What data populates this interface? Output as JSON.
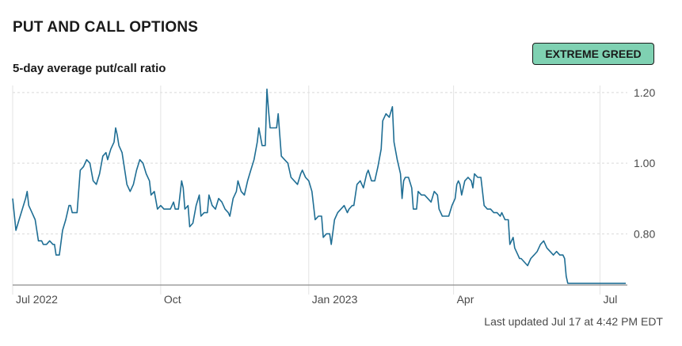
{
  "header": {
    "title": "PUT AND CALL OPTIONS",
    "subtitle": "5-day average put/call ratio",
    "badge": "EXTREME GREED",
    "badge_color": "#7fd1b2",
    "footer": "Last updated Jul 17 at 4:42 PM EDT"
  },
  "chart_data": {
    "type": "line",
    "title": "PUT AND CALL OPTIONS",
    "subtitle": "5-day average put/call ratio",
    "xlabel": "",
    "ylabel": "",
    "ylim": [
      0.655,
      1.22
    ],
    "yticks": [
      0.8,
      1.0,
      1.2
    ],
    "ytick_labels": [
      "0.80",
      "1.00",
      "1.20"
    ],
    "xlim": [
      "2022-07-01",
      "2023-07-18"
    ],
    "xticks": [
      {
        "date": "2022-07-01",
        "label": "Jul 2022"
      },
      {
        "date": "2022-10-01",
        "label": "Oct"
      },
      {
        "date": "2023-01-01",
        "label": "Jan 2023"
      },
      {
        "date": "2023-04-01",
        "label": "Apr"
      },
      {
        "date": "2023-07-01",
        "label": "Jul"
      }
    ],
    "grid": true,
    "line_color": "#1f6e94",
    "series": [
      {
        "values": [
          [
            "2022-07-01",
            0.9
          ],
          [
            "2022-07-03",
            0.81
          ],
          [
            "2022-07-05",
            0.84
          ],
          [
            "2022-07-07",
            0.87
          ],
          [
            "2022-07-09",
            0.9
          ],
          [
            "2022-07-10",
            0.92
          ],
          [
            "2022-07-11",
            0.88
          ],
          [
            "2022-07-13",
            0.86
          ],
          [
            "2022-07-15",
            0.84
          ],
          [
            "2022-07-17",
            0.78
          ],
          [
            "2022-07-19",
            0.78
          ],
          [
            "2022-07-20",
            0.77
          ],
          [
            "2022-07-22",
            0.77
          ],
          [
            "2022-07-24",
            0.78
          ],
          [
            "2022-07-26",
            0.77
          ],
          [
            "2022-07-27",
            0.77
          ],
          [
            "2022-07-28",
            0.74
          ],
          [
            "2022-07-30",
            0.74
          ],
          [
            "2022-08-01",
            0.81
          ],
          [
            "2022-08-03",
            0.84
          ],
          [
            "2022-08-05",
            0.88
          ],
          [
            "2022-08-06",
            0.88
          ],
          [
            "2022-08-07",
            0.86
          ],
          [
            "2022-08-10",
            0.86
          ],
          [
            "2022-08-12",
            0.98
          ],
          [
            "2022-08-14",
            0.99
          ],
          [
            "2022-08-16",
            1.01
          ],
          [
            "2022-08-18",
            1.0
          ],
          [
            "2022-08-20",
            0.95
          ],
          [
            "2022-08-22",
            0.94
          ],
          [
            "2022-08-24",
            0.97
          ],
          [
            "2022-08-26",
            1.02
          ],
          [
            "2022-08-28",
            1.03
          ],
          [
            "2022-08-29",
            1.01
          ],
          [
            "2022-08-31",
            1.04
          ],
          [
            "2022-09-02",
            1.06
          ],
          [
            "2022-09-03",
            1.1
          ],
          [
            "2022-09-04",
            1.08
          ],
          [
            "2022-09-05",
            1.05
          ],
          [
            "2022-09-07",
            1.03
          ],
          [
            "2022-09-09",
            0.97
          ],
          [
            "2022-09-10",
            0.94
          ],
          [
            "2022-09-12",
            0.92
          ],
          [
            "2022-09-14",
            0.94
          ],
          [
            "2022-09-16",
            0.98
          ],
          [
            "2022-09-18",
            1.01
          ],
          [
            "2022-09-20",
            1.0
          ],
          [
            "2022-09-22",
            0.97
          ],
          [
            "2022-09-24",
            0.95
          ],
          [
            "2022-09-25",
            0.91
          ],
          [
            "2022-09-27",
            0.92
          ],
          [
            "2022-09-29",
            0.87
          ],
          [
            "2022-10-01",
            0.88
          ],
          [
            "2022-10-03",
            0.87
          ],
          [
            "2022-10-05",
            0.87
          ],
          [
            "2022-10-07",
            0.87
          ],
          [
            "2022-10-09",
            0.89
          ],
          [
            "2022-10-10",
            0.87
          ],
          [
            "2022-10-12",
            0.87
          ],
          [
            "2022-10-14",
            0.95
          ],
          [
            "2022-10-15",
            0.93
          ],
          [
            "2022-10-16",
            0.87
          ],
          [
            "2022-10-18",
            0.88
          ],
          [
            "2022-10-19",
            0.82
          ],
          [
            "2022-10-21",
            0.83
          ],
          [
            "2022-10-23",
            0.88
          ],
          [
            "2022-10-25",
            0.91
          ],
          [
            "2022-10-26",
            0.85
          ],
          [
            "2022-10-28",
            0.86
          ],
          [
            "2022-10-30",
            0.86
          ],
          [
            "2022-10-31",
            0.91
          ],
          [
            "2022-11-02",
            0.88
          ],
          [
            "2022-11-04",
            0.87
          ],
          [
            "2022-11-06",
            0.9
          ],
          [
            "2022-11-08",
            0.89
          ],
          [
            "2022-11-10",
            0.87
          ],
          [
            "2022-11-12",
            0.86
          ],
          [
            "2022-11-13",
            0.85
          ],
          [
            "2022-11-15",
            0.9
          ],
          [
            "2022-11-17",
            0.92
          ],
          [
            "2022-11-18",
            0.95
          ],
          [
            "2022-11-20",
            0.92
          ],
          [
            "2022-11-22",
            0.91
          ],
          [
            "2022-11-24",
            0.95
          ],
          [
            "2022-11-26",
            0.98
          ],
          [
            "2022-11-28",
            1.01
          ],
          [
            "2022-11-30",
            1.06
          ],
          [
            "2022-12-01",
            1.1
          ],
          [
            "2022-12-03",
            1.05
          ],
          [
            "2022-12-05",
            1.05
          ],
          [
            "2022-12-06",
            1.21
          ],
          [
            "2022-12-07",
            1.15
          ],
          [
            "2022-12-08",
            1.1
          ],
          [
            "2022-12-10",
            1.1
          ],
          [
            "2022-12-12",
            1.1
          ],
          [
            "2022-12-13",
            1.14
          ],
          [
            "2022-12-15",
            1.02
          ],
          [
            "2022-12-17",
            1.01
          ],
          [
            "2022-12-19",
            1.0
          ],
          [
            "2022-12-21",
            0.96
          ],
          [
            "2022-12-23",
            0.95
          ],
          [
            "2022-12-25",
            0.94
          ],
          [
            "2022-12-27",
            0.97
          ],
          [
            "2022-12-28",
            0.98
          ],
          [
            "2022-12-30",
            0.96
          ],
          [
            "2023-01-01",
            0.95
          ],
          [
            "2023-01-03",
            0.92
          ],
          [
            "2023-01-05",
            0.84
          ],
          [
            "2023-01-07",
            0.85
          ],
          [
            "2023-01-09",
            0.85
          ],
          [
            "2023-01-10",
            0.79
          ],
          [
            "2023-01-12",
            0.8
          ],
          [
            "2023-01-14",
            0.8
          ],
          [
            "2023-01-15",
            0.77
          ],
          [
            "2023-01-17",
            0.84
          ],
          [
            "2023-01-19",
            0.86
          ],
          [
            "2023-01-21",
            0.87
          ],
          [
            "2023-01-23",
            0.88
          ],
          [
            "2023-01-25",
            0.86
          ],
          [
            "2023-01-26",
            0.87
          ],
          [
            "2023-01-28",
            0.88
          ],
          [
            "2023-01-29",
            0.88
          ],
          [
            "2023-01-31",
            0.94
          ],
          [
            "2023-02-02",
            0.95
          ],
          [
            "2023-02-04",
            0.93
          ],
          [
            "2023-02-06",
            0.97
          ],
          [
            "2023-02-07",
            0.98
          ],
          [
            "2023-02-09",
            0.95
          ],
          [
            "2023-02-11",
            0.95
          ],
          [
            "2023-02-13",
            0.99
          ],
          [
            "2023-02-15",
            1.04
          ],
          [
            "2023-02-16",
            1.12
          ],
          [
            "2023-02-18",
            1.14
          ],
          [
            "2023-02-20",
            1.13
          ],
          [
            "2023-02-22",
            1.16
          ],
          [
            "2023-02-23",
            1.06
          ],
          [
            "2023-02-25",
            1.01
          ],
          [
            "2023-02-27",
            0.97
          ],
          [
            "2023-02-28",
            0.9
          ],
          [
            "2023-03-01",
            0.95
          ],
          [
            "2023-03-02",
            0.96
          ],
          [
            "2023-03-04",
            0.96
          ],
          [
            "2023-03-06",
            0.93
          ],
          [
            "2023-03-07",
            0.87
          ],
          [
            "2023-03-09",
            0.87
          ],
          [
            "2023-03-10",
            0.92
          ],
          [
            "2023-03-12",
            0.91
          ],
          [
            "2023-03-14",
            0.91
          ],
          [
            "2023-03-16",
            0.9
          ],
          [
            "2023-03-18",
            0.89
          ],
          [
            "2023-03-20",
            0.92
          ],
          [
            "2023-03-22",
            0.91
          ],
          [
            "2023-03-23",
            0.87
          ],
          [
            "2023-03-25",
            0.85
          ],
          [
            "2023-03-27",
            0.85
          ],
          [
            "2023-03-29",
            0.85
          ],
          [
            "2023-03-31",
            0.88
          ],
          [
            "2023-04-02",
            0.9
          ],
          [
            "2023-04-03",
            0.94
          ],
          [
            "2023-04-04",
            0.95
          ],
          [
            "2023-04-05",
            0.94
          ],
          [
            "2023-04-06",
            0.91
          ],
          [
            "2023-04-08",
            0.95
          ],
          [
            "2023-04-10",
            0.96
          ],
          [
            "2023-04-12",
            0.95
          ],
          [
            "2023-04-13",
            0.93
          ],
          [
            "2023-04-14",
            0.97
          ],
          [
            "2023-04-16",
            0.96
          ],
          [
            "2023-04-18",
            0.96
          ],
          [
            "2023-04-20",
            0.88
          ],
          [
            "2023-04-22",
            0.87
          ],
          [
            "2023-04-24",
            0.87
          ],
          [
            "2023-04-26",
            0.86
          ],
          [
            "2023-04-28",
            0.86
          ],
          [
            "2023-04-30",
            0.85
          ],
          [
            "2023-05-01",
            0.86
          ],
          [
            "2023-05-03",
            0.84
          ],
          [
            "2023-05-05",
            0.84
          ],
          [
            "2023-05-06",
            0.77
          ],
          [
            "2023-05-08",
            0.79
          ],
          [
            "2023-05-09",
            0.76
          ],
          [
            "2023-05-11",
            0.74
          ],
          [
            "2023-05-12",
            0.73
          ],
          [
            "2023-05-13",
            0.73
          ],
          [
            "2023-05-15",
            0.72
          ],
          [
            "2023-05-17",
            0.71
          ],
          [
            "2023-05-19",
            0.73
          ],
          [
            "2023-05-21",
            0.74
          ],
          [
            "2023-05-23",
            0.75
          ],
          [
            "2023-05-25",
            0.77
          ],
          [
            "2023-05-27",
            0.78
          ],
          [
            "2023-05-29",
            0.76
          ],
          [
            "2023-05-31",
            0.75
          ],
          [
            "2023-06-02",
            0.74
          ],
          [
            "2023-06-04",
            0.75
          ],
          [
            "2023-06-06",
            0.74
          ],
          [
            "2023-06-08",
            0.74
          ],
          [
            "2023-06-09",
            0.73
          ],
          [
            "2023-06-10",
            0.68
          ],
          [
            "2023-06-11",
            0.66
          ],
          [
            "2023-06-13",
            0.66
          ],
          [
            "2023-06-18",
            0.66
          ],
          [
            "2023-06-22",
            0.66
          ],
          [
            "2023-06-26",
            0.66
          ],
          [
            "2023-06-30",
            0.66
          ],
          [
            "2023-07-04",
            0.66
          ],
          [
            "2023-07-09",
            0.66
          ],
          [
            "2023-07-13",
            0.66
          ],
          [
            "2023-07-17",
            0.66
          ]
        ]
      }
    ]
  }
}
